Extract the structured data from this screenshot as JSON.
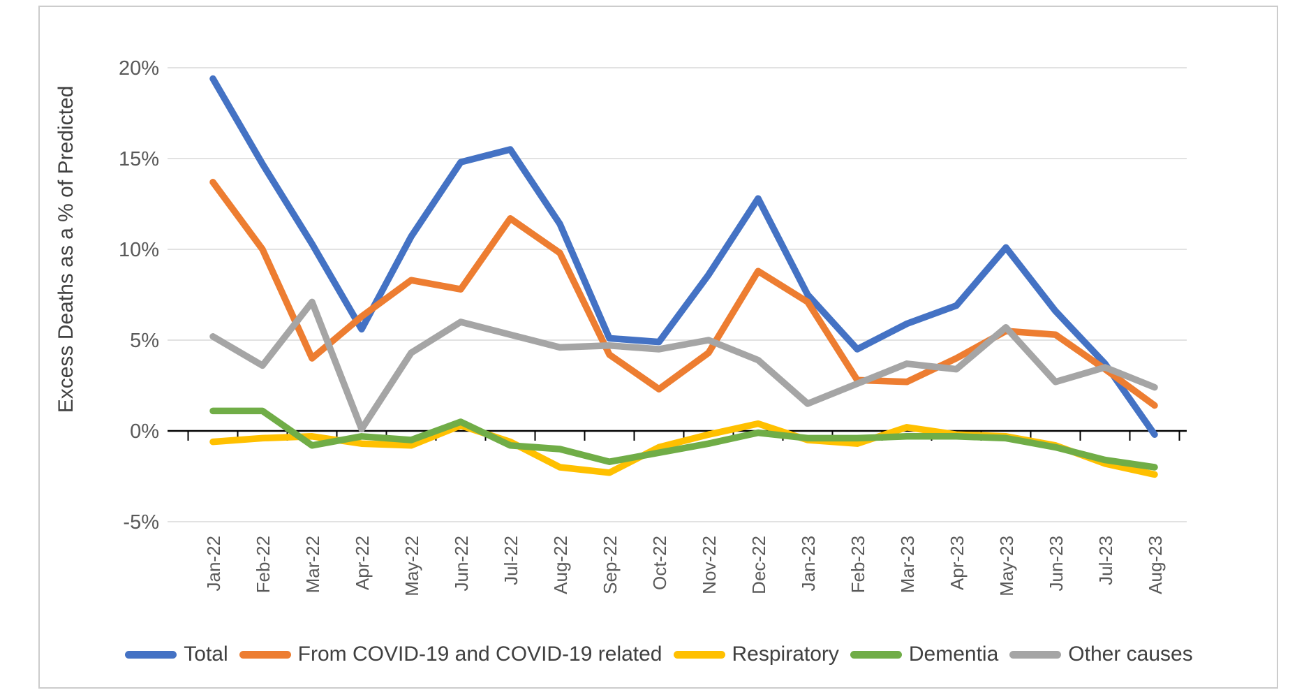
{
  "chart_data": {
    "type": "line",
    "title": "",
    "ylabel": "Excess Deaths as a % of Predicted",
    "xlabel": "",
    "grid": true,
    "legend_position": "bottom",
    "ylim": [
      -5,
      20
    ],
    "yticks": [
      {
        "v": 20,
        "label": "20%"
      },
      {
        "v": 15,
        "label": "15%"
      },
      {
        "v": 10,
        "label": "10%"
      },
      {
        "v": 5,
        "label": "5%"
      },
      {
        "v": 0,
        "label": "0%"
      },
      {
        "v": -5,
        "label": "-5%"
      }
    ],
    "categories": [
      "Jan-22",
      "Feb-22",
      "Mar-22",
      "Apr-22",
      "May-22",
      "Jun-22",
      "Jul-22",
      "Aug-22",
      "Sep-22",
      "Oct-22",
      "Nov-22",
      "Dec-22",
      "Jan-23",
      "Feb-23",
      "Mar-23",
      "Apr-23",
      "May-23",
      "Jun-23",
      "Jul-23",
      "Aug-23"
    ],
    "series": [
      {
        "name": "Total",
        "color": "#4472C4",
        "values": [
          19.4,
          14.7,
          10.3,
          5.6,
          10.7,
          14.8,
          15.5,
          11.4,
          5.1,
          4.9,
          8.6,
          12.8,
          7.5,
          4.5,
          5.9,
          6.9,
          10.1,
          6.6,
          3.7,
          -0.2
        ]
      },
      {
        "name": "From COVID-19 and COVID-19 related",
        "color": "#ED7D31",
        "values": [
          13.7,
          10.0,
          4.0,
          6.3,
          8.3,
          7.8,
          11.7,
          9.8,
          4.2,
          2.3,
          4.3,
          8.8,
          7.1,
          2.8,
          2.7,
          4.0,
          5.5,
          5.3,
          3.4,
          1.4
        ]
      },
      {
        "name": "Respiratory",
        "color": "#FFC000",
        "values": [
          -0.6,
          -0.4,
          -0.3,
          -0.7,
          -0.8,
          0.3,
          -0.6,
          -2.0,
          -2.3,
          -0.9,
          -0.2,
          0.4,
          -0.5,
          -0.7,
          0.2,
          -0.2,
          -0.3,
          -0.8,
          -1.8,
          -2.4
        ]
      },
      {
        "name": "Dementia",
        "color": "#70AD47",
        "values": [
          1.1,
          1.1,
          -0.8,
          -0.3,
          -0.5,
          0.5,
          -0.8,
          -1.0,
          -1.7,
          -1.2,
          -0.7,
          -0.1,
          -0.4,
          -0.4,
          -0.3,
          -0.3,
          -0.4,
          -0.9,
          -1.6,
          -2.0
        ]
      },
      {
        "name": "Other causes",
        "color": "#A5A5A5",
        "values": [
          5.2,
          3.6,
          7.1,
          0.1,
          4.3,
          6.0,
          5.3,
          4.6,
          4.7,
          4.5,
          5.0,
          3.9,
          1.5,
          2.6,
          3.7,
          3.4,
          5.7,
          2.7,
          3.5,
          2.4
        ]
      }
    ],
    "colors": {
      "gridline": "#D9D9D9",
      "zero_axis": "#000000",
      "axis_text": "#595959"
    }
  }
}
